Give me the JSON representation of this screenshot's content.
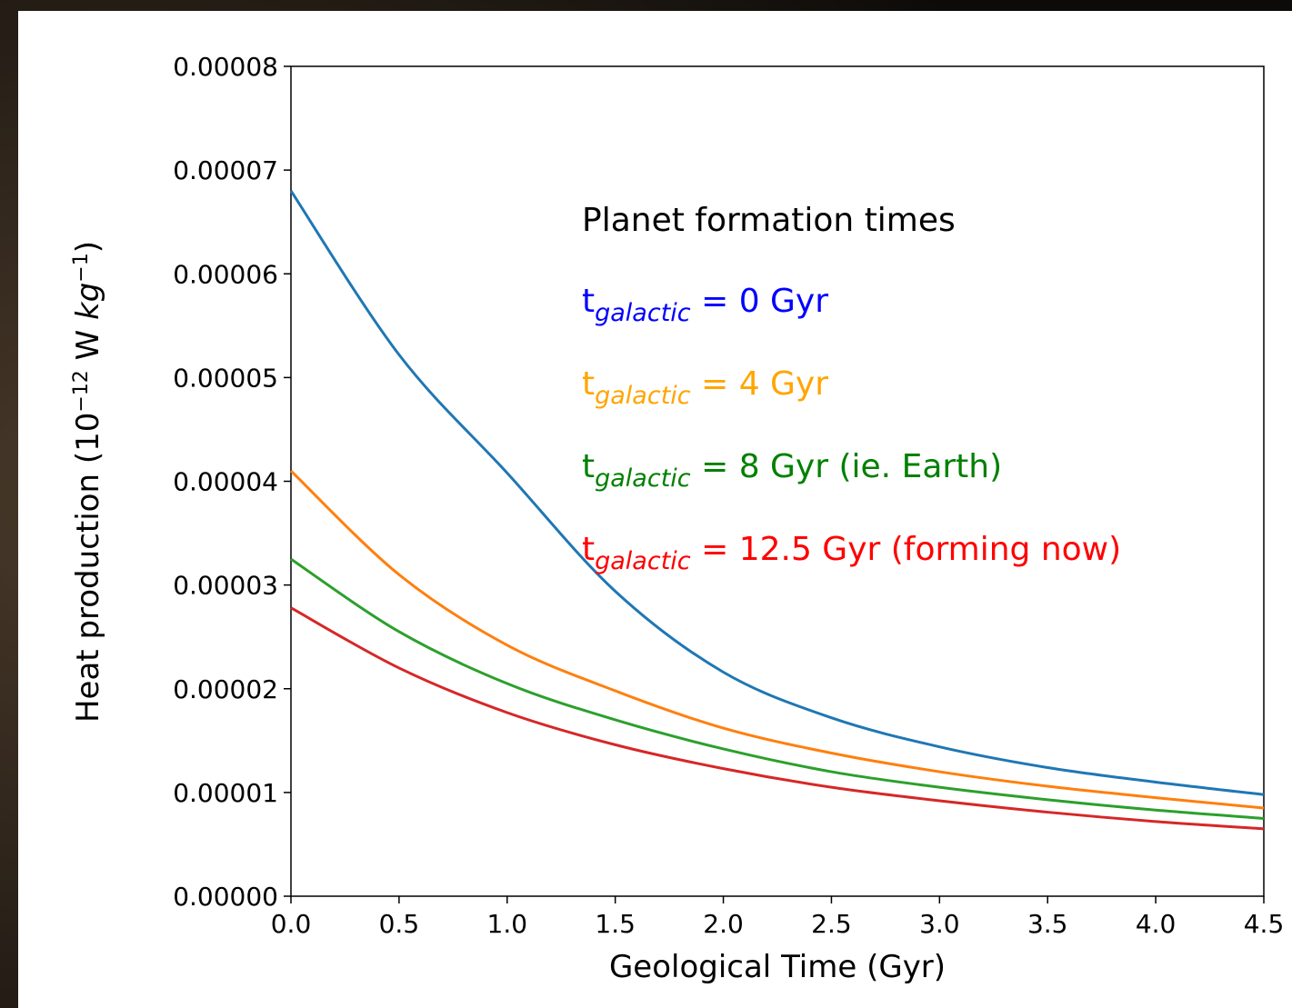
{
  "chart_data": {
    "type": "line",
    "xlabel": "Geological Time (Gyr)",
    "ylabel": [
      "Heat production (10",
      "−12",
      " W ",
      "kg",
      "−1",
      ")"
    ],
    "legend_title": "Planet formation times",
    "x": [
      0,
      0.5,
      1,
      1.5,
      2,
      2.5,
      3,
      3.5,
      4,
      4.5
    ],
    "series": [
      {
        "name": [
          "t",
          "galactic",
          " = 0 Gyr"
        ],
        "color": "#1f77b4",
        "label_color": "#0000ff",
        "values": [
          6.8e-05,
          5.22e-05,
          4.08e-05,
          2.94e-05,
          2.16e-05,
          1.72e-05,
          1.44e-05,
          1.24e-05,
          1.1e-05,
          9.8e-06
        ]
      },
      {
        "name": [
          "t",
          "galactic",
          " = 4 Gyr"
        ],
        "color": "#ff7f0e",
        "label_color": "#ffa500",
        "values": [
          4.1e-05,
          3.1e-05,
          2.42e-05,
          1.98e-05,
          1.62e-05,
          1.38e-05,
          1.2e-05,
          1.06e-05,
          9.5e-06,
          8.5e-06
        ]
      },
      {
        "name": [
          "t",
          "galactic",
          " = 8 Gyr (ie. Earth)"
        ],
        "color": "#2ca02c",
        "label_color": "#008000",
        "values": [
          3.25e-05,
          2.55e-05,
          2.05e-05,
          1.7e-05,
          1.42e-05,
          1.2e-05,
          1.05e-05,
          9.3e-06,
          8.3e-06,
          7.5e-06
        ]
      },
      {
        "name": [
          "t",
          "galactic",
          " = 12.5 Gyr (forming now)"
        ],
        "color": "#d62728",
        "label_color": "#ff0000",
        "values": [
          2.78e-05,
          2.2e-05,
          1.77e-05,
          1.46e-05,
          1.23e-05,
          1.05e-05,
          9.2e-06,
          8.1e-06,
          7.2e-06,
          6.5e-06
        ]
      }
    ],
    "xlim": [
      0,
      4.5
    ],
    "ylim": [
      0,
      8e-05
    ],
    "xticks": [
      {
        "value": 0,
        "label": "0.0"
      },
      0.5,
      {
        "value": 1,
        "label": "1.0"
      },
      1.5,
      {
        "value": 2,
        "label": "2.0"
      },
      2.5,
      {
        "value": 3,
        "label": "3.0"
      },
      3.5,
      {
        "value": 4,
        "label": "4.0"
      },
      4.5
    ],
    "yticks": [
      {
        "value": 0,
        "label": "0.00000"
      },
      1e-05,
      2e-05,
      3e-05,
      4e-05,
      5e-05,
      6e-05,
      7e-05,
      8e-05
    ],
    "grid": false
  }
}
